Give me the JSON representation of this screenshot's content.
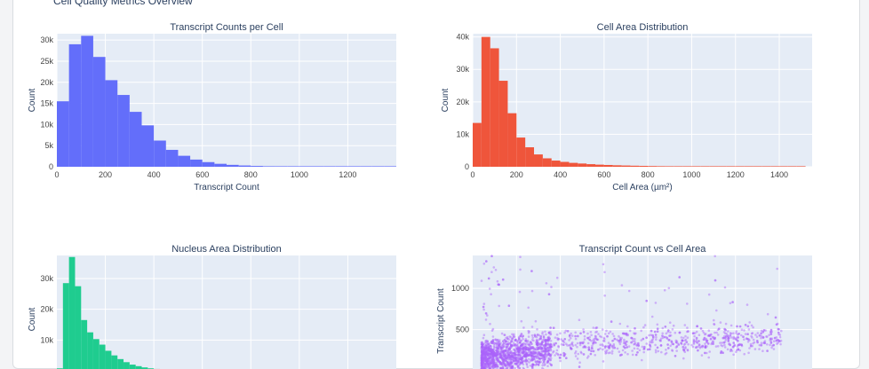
{
  "page": {
    "title": "Cell Quality Metrics Overview"
  },
  "chart_data": [
    {
      "id": "transcripts",
      "type": "bar",
      "title": "Transcript Counts per Cell",
      "xlabel": "Transcript Count",
      "ylabel": "Count",
      "color": "#636efa",
      "xlim": [
        0,
        1400
      ],
      "ylim": [
        0,
        31500
      ],
      "bin_width": 50,
      "bin_start": 0,
      "values": [
        15500,
        29000,
        31000,
        26000,
        20500,
        17000,
        13000,
        9800,
        6200,
        4000,
        2600,
        1700,
        1100,
        700,
        450,
        300,
        200,
        130,
        90,
        60,
        40,
        30,
        20,
        15,
        10,
        8,
        5,
        3
      ],
      "x_ticks": [
        0,
        200,
        400,
        600,
        800,
        1000,
        1200
      ],
      "y_ticks": [
        0,
        5000,
        10000,
        15000,
        20000,
        25000,
        30000
      ],
      "y_tick_labels": [
        "0",
        "5k",
        "10k",
        "15k",
        "20k",
        "25k",
        "30k"
      ]
    },
    {
      "id": "cellarea",
      "type": "bar",
      "title": "Cell Area Distribution",
      "xlabel": "Cell Area (µm²)",
      "ylabel": "Count",
      "color": "#ef553b",
      "xlim": [
        0,
        1550
      ],
      "ylim": [
        0,
        41000
      ],
      "bin_width": 40,
      "bin_start": 0,
      "values": [
        13500,
        40000,
        36500,
        26500,
        16500,
        9000,
        6000,
        3800,
        2600,
        1900,
        1500,
        1200,
        1000,
        800,
        650,
        550,
        450,
        380,
        320,
        270,
        220,
        180,
        150,
        120,
        100,
        80,
        60,
        50,
        40,
        30,
        25,
        20,
        15,
        12,
        10,
        8,
        6,
        5
      ],
      "x_ticks": [
        0,
        200,
        400,
        600,
        800,
        1000,
        1200,
        1400
      ],
      "y_ticks": [
        0,
        10000,
        20000,
        30000,
        40000
      ],
      "y_tick_labels": [
        "0",
        "10k",
        "20k",
        "30k",
        "40k"
      ]
    },
    {
      "id": "nucleus",
      "type": "bar",
      "title": "Nucleus Area Distribution",
      "ylabel": "Count",
      "color": "#1fcc8f",
      "xlim": [
        0,
        700
      ],
      "ylim": [
        0,
        37500
      ],
      "bin_width": 12.5,
      "bin_start": 0,
      "values": [
        800,
        28500,
        37000,
        27500,
        16500,
        12500,
        10300,
        8500,
        6500,
        5000,
        3800,
        2800,
        2000,
        1500,
        1100,
        800,
        600,
        450,
        300,
        200,
        150,
        100,
        70,
        50,
        30
      ],
      "y_ticks": [
        10000,
        20000,
        30000
      ],
      "y_tick_labels": [
        "10k",
        "20k",
        "30k"
      ]
    },
    {
      "id": "scatter",
      "type": "scatter",
      "title": "Transcript Count vs Cell Area",
      "ylabel": "Transcript Count",
      "color": "#ab63fa",
      "xlim": [
        0,
        1550
      ],
      "ylim": [
        0,
        1400
      ],
      "y_ticks": [
        500,
        1000
      ],
      "y_tick_labels": [
        "500",
        "1000"
      ]
    }
  ]
}
